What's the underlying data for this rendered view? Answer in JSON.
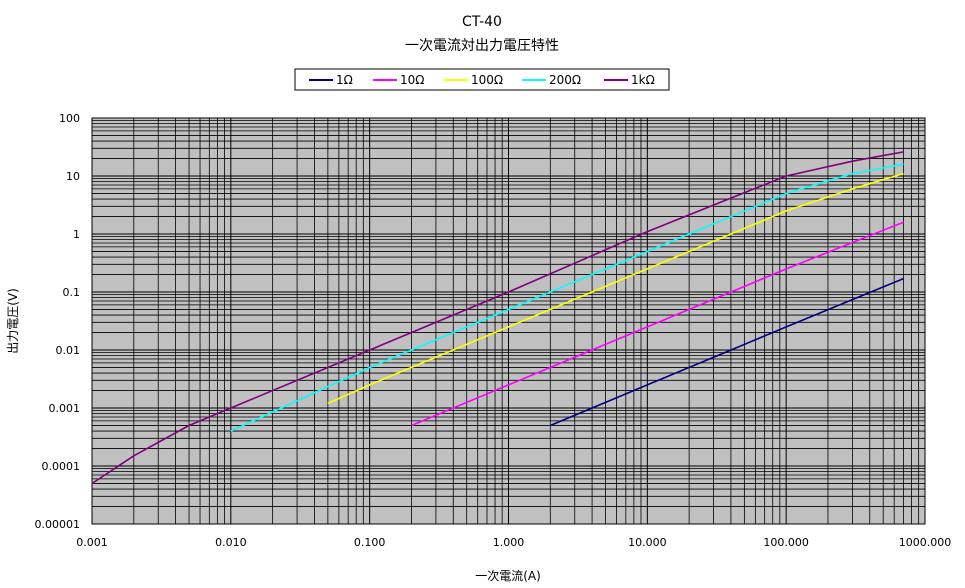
{
  "chart_data": {
    "type": "line",
    "title": "CT-40",
    "subtitle": "一次電流対出力電圧特性",
    "xlabel": "一次電流(A)",
    "ylabel": "出力電圧(V)",
    "x_scale": "log",
    "y_scale": "log",
    "xlim": [
      0.001,
      1000
    ],
    "ylim": [
      1e-05,
      100
    ],
    "x_ticks": [
      0.001,
      0.01,
      0.1,
      1,
      10,
      100,
      1000
    ],
    "x_tick_labels": [
      "0.001",
      "0.010",
      "0.100",
      "1.000",
      "10.000",
      "100.000",
      "1000.000"
    ],
    "y_ticks": [
      1e-05,
      0.0001,
      0.001,
      0.01,
      0.1,
      1,
      10,
      100
    ],
    "y_tick_labels": [
      "0.00001",
      "0.0001",
      "0.001",
      "0.01",
      "0.1",
      "1",
      "10",
      "100"
    ],
    "grid": true,
    "plot_background": "#c0c0c0",
    "legend_position": "top",
    "series": [
      {
        "name": "1Ω",
        "color": "#000080",
        "points": [
          [
            2,
            0.0005
          ],
          [
            10,
            0.0025
          ],
          [
            100,
            0.025
          ],
          [
            700,
            0.17
          ]
        ]
      },
      {
        "name": "10Ω",
        "color": "#ff00ff",
        "points": [
          [
            0.2,
            0.0005
          ],
          [
            1,
            0.0025
          ],
          [
            10,
            0.025
          ],
          [
            100,
            0.25
          ],
          [
            700,
            1.6
          ]
        ]
      },
      {
        "name": "100Ω",
        "color": "#ffff00",
        "points": [
          [
            0.05,
            0.0012
          ],
          [
            0.1,
            0.0025
          ],
          [
            1,
            0.025
          ],
          [
            10,
            0.25
          ],
          [
            100,
            2.5
          ],
          [
            300,
            6
          ],
          [
            700,
            11
          ]
        ]
      },
      {
        "name": "200Ω",
        "color": "#00ffff",
        "points": [
          [
            0.01,
            0.0004
          ],
          [
            0.1,
            0.005
          ],
          [
            1,
            0.05
          ],
          [
            10,
            0.5
          ],
          [
            100,
            5
          ],
          [
            300,
            11
          ],
          [
            700,
            16
          ]
        ]
      },
      {
        "name": "1kΩ",
        "color": "#800080",
        "points": [
          [
            0.001,
            5e-05
          ],
          [
            0.002,
            0.00015
          ],
          [
            0.005,
            0.0005
          ],
          [
            0.01,
            0.001
          ],
          [
            0.1,
            0.01
          ],
          [
            1,
            0.1
          ],
          [
            10,
            1.1
          ],
          [
            100,
            10
          ],
          [
            300,
            18
          ],
          [
            700,
            26
          ]
        ]
      }
    ]
  }
}
